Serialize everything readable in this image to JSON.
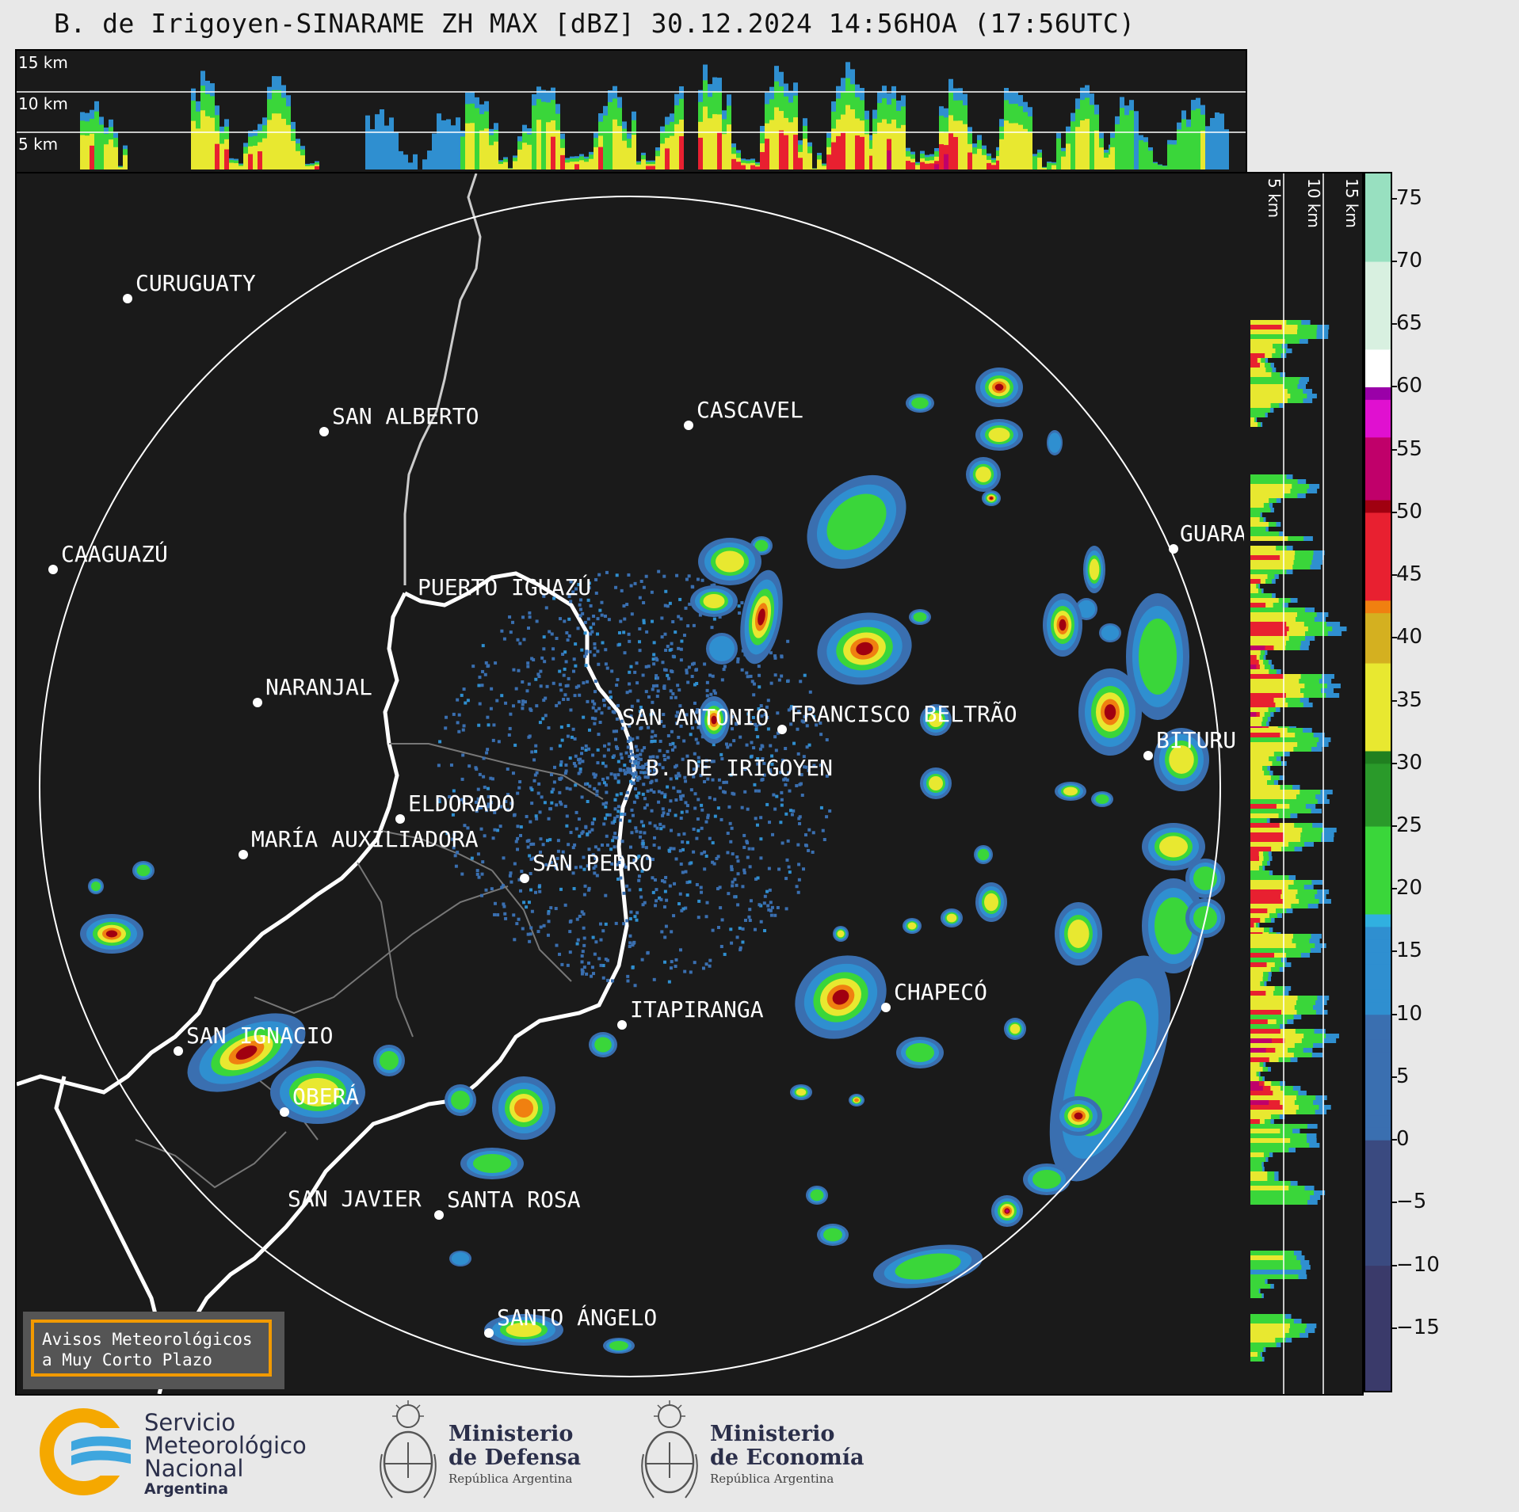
{
  "title": "B. de Irigoyen-SINARAME ZH MAX [dBZ] 30.12.2024 14:56HOA (17:56UTC)",
  "top_panel": {
    "altitudes": [
      "15 km",
      "10 km",
      "5 km"
    ]
  },
  "side_panel": {
    "altitudes": [
      "5 km",
      "10 km",
      "15 km"
    ]
  },
  "colorbar": {
    "unit": "dBZ",
    "ticks": [
      "75",
      "70",
      "65",
      "60",
      "55",
      "50",
      "45",
      "40",
      "35",
      "30",
      "25",
      "20",
      "15",
      "10",
      "5",
      "0",
      "−5",
      "−10",
      "−15"
    ],
    "range": [
      -20,
      77
    ]
  },
  "cities": [
    {
      "name": "CURUGUATY"
    },
    {
      "name": "SAN ALBERTO"
    },
    {
      "name": "CASCAVEL"
    },
    {
      "name": "CAAGUAZÚ"
    },
    {
      "name": "GUARA"
    },
    {
      "name": "PUERTO IGUAZÚ"
    },
    {
      "name": "NARANJAL"
    },
    {
      "name": "SAN ANTONIO"
    },
    {
      "name": "FRANCISCO BELTRÃO"
    },
    {
      "name": "BITURU"
    },
    {
      "name": "B. DE IRIGOYEN"
    },
    {
      "name": "ELDORADO"
    },
    {
      "name": "MARÍA AUXILIADORA"
    },
    {
      "name": "SAN PEDRO"
    },
    {
      "name": "CHAPECÓ"
    },
    {
      "name": "ITAPIRANGA"
    },
    {
      "name": "SAN IGNACIO"
    },
    {
      "name": "OBERÁ"
    },
    {
      "name": "SAN JAVIER"
    },
    {
      "name": "SANTA ROSA"
    },
    {
      "name": "SANTO ÁNGELO"
    }
  ],
  "notice": {
    "line1": "Avisos Meteorológicos",
    "line2": "a Muy Corto Plazo",
    "border_color": "#f29a00"
  },
  "footer": {
    "smn": {
      "line1": "Servicio",
      "line2": "Meteorológico",
      "line3": "Nacional",
      "line4": "Argentina"
    },
    "defensa": {
      "line1": "Ministerio",
      "line2": "de Defensa",
      "line3": "República Argentina"
    },
    "economia": {
      "line1": "Ministerio",
      "line2": "de Economía",
      "line3": "República Argentina"
    }
  },
  "colors": {
    "background": "#1a1a1a",
    "range_ring": "#ffffff",
    "echo_low": "#3a6fb0",
    "echo_mid": "#3ad63a",
    "echo_high": "#e8202a",
    "echo_max": "#e010d0"
  }
}
